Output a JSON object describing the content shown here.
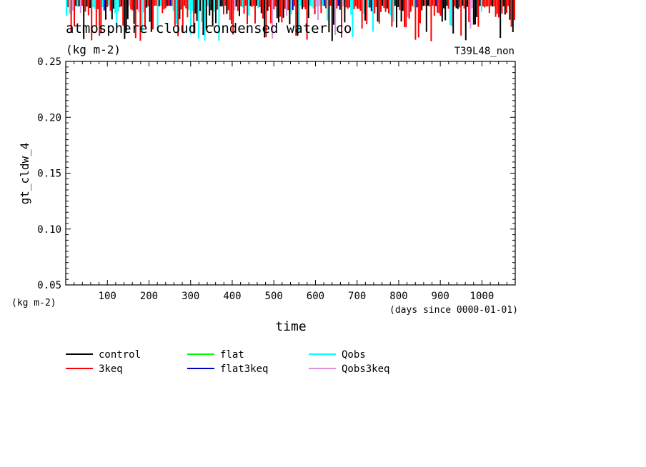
{
  "title": "atmosphere cloud condensed water co",
  "title_units": "(kg m-2)",
  "run_label": "T39L48_non",
  "y_axis_label": "gt_cldw_4",
  "y_axis_units": "(kg m-2)",
  "x_axis_label": "time",
  "x_axis_units": "(days since 0000-01-01)",
  "chart_data": {
    "type": "line",
    "title": "atmosphere cloud condensed water co",
    "xlabel": "time",
    "ylabel": "gt_cldw_4",
    "xlim": [
      0,
      1080
    ],
    "ylim": [
      0.05,
      0.25
    ],
    "x_ticks": [
      "100",
      "200",
      "300",
      "400",
      "500",
      "600",
      "700",
      "800",
      "900",
      "1000"
    ],
    "y_ticks": [
      "0.05",
      "0.10",
      "0.15",
      "0.20",
      "0.25"
    ],
    "grid": false,
    "legend_position": "bottom",
    "series": [
      {
        "name": "control",
        "color": "#000000"
      },
      {
        "name": "3keq",
        "color": "#ff0000"
      },
      {
        "name": "flat",
        "color": "#00ff00"
      },
      {
        "name": "flat3keq",
        "color": "#0000c0"
      },
      {
        "name": "Qobs",
        "color": "#00ffff"
      },
      {
        "name": "Qobs3keq",
        "color": "#e090e0"
      }
    ]
  }
}
